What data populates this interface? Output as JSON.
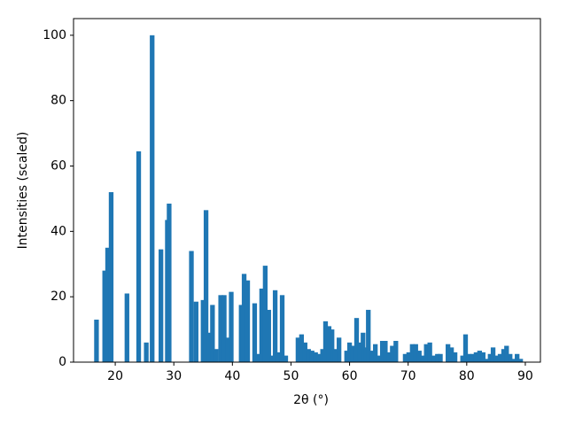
{
  "chart_data": {
    "type": "bar",
    "xlabel": "2θ (°)",
    "ylabel": "Intensities (scaled)",
    "color": "#1f77b4",
    "x": [
      16.8,
      18.2,
      18.7,
      19.3,
      22.0,
      24.0,
      25.3,
      26.3,
      27.8,
      28.9,
      29.2,
      33.0,
      33.8,
      35.0,
      35.5,
      36.1,
      36.6,
      37.2,
      38.0,
      38.6,
      39.2,
      39.8,
      41.5,
      42.0,
      42.6,
      43.8,
      44.4,
      45.0,
      45.6,
      46.2,
      46.8,
      47.3,
      47.8,
      48.5,
      49.1,
      51.2,
      51.8,
      52.4,
      53.0,
      53.6,
      54.2,
      54.8,
      55.4,
      55.9,
      56.5,
      57.0,
      57.5,
      58.2,
      59.5,
      60.0,
      60.5,
      61.2,
      61.8,
      62.3,
      62.8,
      63.2,
      63.8,
      64.4,
      65.0,
      65.6,
      66.1,
      66.7,
      67.3,
      67.9,
      69.5,
      70.1,
      70.7,
      71.3,
      71.9,
      72.5,
      73.1,
      73.7,
      74.3,
      75.0,
      75.5,
      76.8,
      77.4,
      78.0,
      79.3,
      79.8,
      80.4,
      81.0,
      81.6,
      82.2,
      82.8,
      83.5,
      84.0,
      84.5,
      85.1,
      85.7,
      86.3,
      86.8,
      87.4,
      88.0,
      88.6,
      89.2
    ],
    "values": [
      13,
      28,
      35,
      52,
      21,
      64.5,
      6,
      100,
      34.5,
      43.5,
      48.5,
      34,
      18.5,
      19,
      46.5,
      9,
      17.5,
      4,
      20.5,
      20.5,
      7.5,
      21.5,
      17.5,
      27,
      25,
      18,
      2.5,
      22.5,
      29.5,
      16,
      2,
      22,
      3,
      20.5,
      2,
      7.5,
      8.5,
      6,
      4,
      3.5,
      3,
      2.5,
      4,
      12.5,
      11,
      10,
      4,
      7.5,
      3.5,
      6,
      5,
      13.5,
      6,
      9,
      4.5,
      16,
      3.5,
      5.5,
      2,
      6.5,
      6.5,
      3,
      5,
      6.5,
      2.5,
      3,
      5.5,
      5.5,
      3.5,
      2,
      5.5,
      6,
      2,
      2.5,
      2.5,
      5.5,
      4.5,
      3,
      2,
      8.5,
      2.5,
      2.5,
      3,
      3.5,
      3,
      1,
      2.5,
      4.5,
      2,
      2.5,
      4,
      5,
      2.5,
      1,
      2.5,
      1
    ],
    "xlim": [
      12.88,
      92.58
    ],
    "xticks": [
      20,
      30,
      40,
      50,
      60,
      70,
      80,
      90
    ],
    "ylim": [
      0,
      105.1
    ],
    "yticks": [
      0,
      20,
      40,
      60,
      80,
      100
    ]
  }
}
